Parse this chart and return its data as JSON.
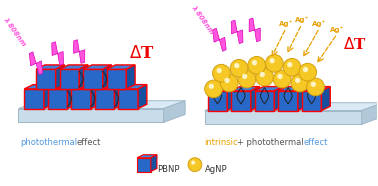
{
  "bg_color": "#ffffff",
  "platform_top_color": "#daeaf4",
  "platform_front_color": "#c8dcea",
  "platform_right_color": "#b0c8d8",
  "platform_edge": "#a0b8c8",
  "cube_front_color": "#2868c8",
  "cube_top_color": "#4080d8",
  "cube_right_color": "#1850a0",
  "cube_edge_color": "#ff0000",
  "sphere_color": "#f5c825",
  "sphere_edge": "#d4a010",
  "sphere_highlight": "#fffff0",
  "lightning_color": "#ff55dd",
  "lightning_edge": "#dd00bb",
  "delta_T_color": "#ee0000",
  "ag_ion_color": "#e8a000",
  "ag_arrow_color": "#e8a000",
  "curl_color": "#222222",
  "label_blue_color": "#5599dd",
  "label_orange_color": "#e8a000",
  "label_dark_color": "#555555",
  "legend_blue_label": "PBNP",
  "legend_gold_label": "AgNP",
  "wavelength_text": "λ 808nm",
  "left_caption_blue": "photothermal",
  "left_caption_dark": "effect",
  "right_caption_orange": "intrinsic",
  "right_caption_plus_dark": "+ photothermal",
  "right_caption_blue": "effect"
}
